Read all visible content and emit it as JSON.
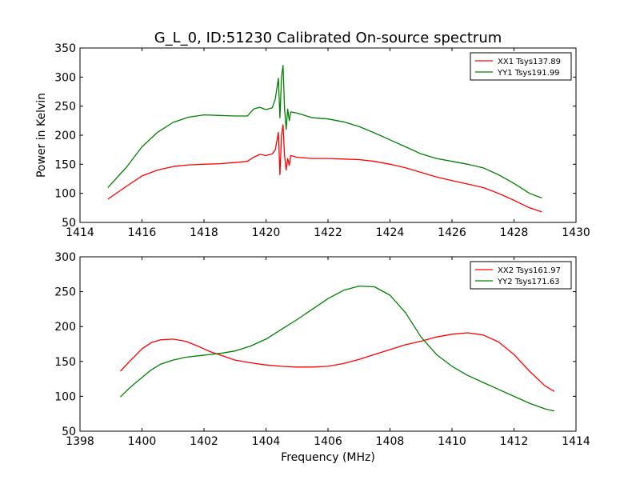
{
  "figure": {
    "title": "G_L_0, ID:51230 Calibrated On-source spectrum"
  },
  "chart_data": [
    {
      "type": "line",
      "ylabel": "Power in Kelvin",
      "xlabel": "",
      "xlim": [
        1414,
        1430
      ],
      "ylim": [
        50,
        350
      ],
      "xticks": [
        1414,
        1416,
        1418,
        1420,
        1422,
        1424,
        1426,
        1428,
        1430
      ],
      "yticks": [
        50,
        100,
        150,
        200,
        250,
        300,
        350
      ],
      "legend_position": "top-right",
      "grid": false,
      "series": [
        {
          "name": "XX1 Tsys137.89",
          "color": "#ff0000",
          "x": [
            1414.9,
            1415.5,
            1416,
            1416.5,
            1417,
            1417.5,
            1418,
            1418.5,
            1419,
            1419.4,
            1419.6,
            1419.8,
            1420.0,
            1420.2,
            1420.3,
            1420.4,
            1420.45,
            1420.5,
            1420.55,
            1420.6,
            1420.65,
            1420.7,
            1420.75,
            1420.8,
            1421,
            1421.5,
            1422,
            1422.5,
            1423,
            1423.5,
            1424,
            1424.5,
            1425,
            1425.5,
            1426,
            1426.5,
            1427,
            1427.5,
            1428,
            1428.5,
            1428.9
          ],
          "y": [
            90,
            112,
            130,
            140,
            146,
            149,
            150,
            151,
            153,
            155,
            162,
            167,
            165,
            168,
            175,
            205,
            132,
            200,
            218,
            165,
            140,
            160,
            148,
            165,
            162,
            160,
            160,
            159,
            158,
            155,
            150,
            144,
            136,
            128,
            122,
            116,
            110,
            100,
            88,
            75,
            68
          ]
        },
        {
          "name": "YY1 Tsys191.99",
          "color": "#008000",
          "x": [
            1414.9,
            1415.5,
            1416,
            1416.5,
            1417,
            1417.5,
            1418,
            1418.5,
            1419,
            1419.4,
            1419.6,
            1419.8,
            1420.0,
            1420.2,
            1420.3,
            1420.4,
            1420.45,
            1420.5,
            1420.55,
            1420.6,
            1420.65,
            1420.7,
            1420.75,
            1420.8,
            1421,
            1421.5,
            1422,
            1422.5,
            1423,
            1423.5,
            1424,
            1424.5,
            1425,
            1425.5,
            1426,
            1426.5,
            1427,
            1427.5,
            1428,
            1428.5,
            1428.9
          ],
          "y": [
            110,
            145,
            180,
            205,
            222,
            231,
            235,
            234,
            233,
            233,
            245,
            248,
            244,
            247,
            262,
            298,
            230,
            300,
            320,
            245,
            210,
            245,
            225,
            240,
            238,
            230,
            228,
            223,
            215,
            204,
            192,
            180,
            168,
            160,
            155,
            150,
            144,
            132,
            117,
            100,
            92
          ]
        }
      ]
    },
    {
      "type": "line",
      "xlabel": "Frequency (MHz)",
      "ylabel": "",
      "xlim": [
        1398,
        1414
      ],
      "ylim": [
        50,
        300
      ],
      "xticks": [
        1398,
        1400,
        1402,
        1404,
        1406,
        1408,
        1410,
        1412,
        1414
      ],
      "yticks": [
        50,
        100,
        150,
        200,
        250,
        300
      ],
      "legend_position": "top-right",
      "grid": false,
      "series": [
        {
          "name": "XX2 Tsys161.97",
          "color": "#ff0000",
          "x": [
            1399.3,
            1399.6,
            1400,
            1400.3,
            1400.6,
            1401,
            1401.4,
            1401.8,
            1402.2,
            1402.6,
            1403,
            1403.5,
            1404,
            1404.5,
            1405,
            1405.5,
            1406,
            1406.5,
            1407,
            1407.5,
            1408,
            1408.5,
            1409,
            1409.5,
            1410,
            1410.5,
            1411,
            1411.5,
            1412,
            1412.5,
            1413,
            1413.3
          ],
          "y": [
            136,
            150,
            168,
            177,
            181,
            182,
            179,
            172,
            164,
            158,
            152,
            148,
            145,
            143,
            142,
            142,
            143,
            147,
            153,
            160,
            167,
            174,
            179,
            185,
            189,
            191,
            188,
            178,
            160,
            136,
            115,
            107
          ]
        },
        {
          "name": "YY2 Tsys171.63",
          "color": "#008000",
          "x": [
            1399.3,
            1399.6,
            1400,
            1400.3,
            1400.6,
            1401,
            1401.4,
            1401.8,
            1402.2,
            1402.6,
            1403,
            1403.5,
            1404,
            1404.5,
            1405,
            1405.5,
            1406,
            1406.5,
            1407,
            1407.5,
            1408,
            1408.5,
            1409,
            1409.5,
            1410,
            1410.5,
            1411,
            1411.5,
            1412,
            1412.5,
            1413,
            1413.3
          ],
          "y": [
            99,
            112,
            127,
            138,
            146,
            152,
            156,
            158,
            160,
            162,
            165,
            172,
            182,
            196,
            210,
            225,
            240,
            252,
            258,
            257,
            245,
            220,
            185,
            160,
            143,
            130,
            120,
            110,
            100,
            90,
            82,
            79
          ]
        }
      ]
    }
  ]
}
